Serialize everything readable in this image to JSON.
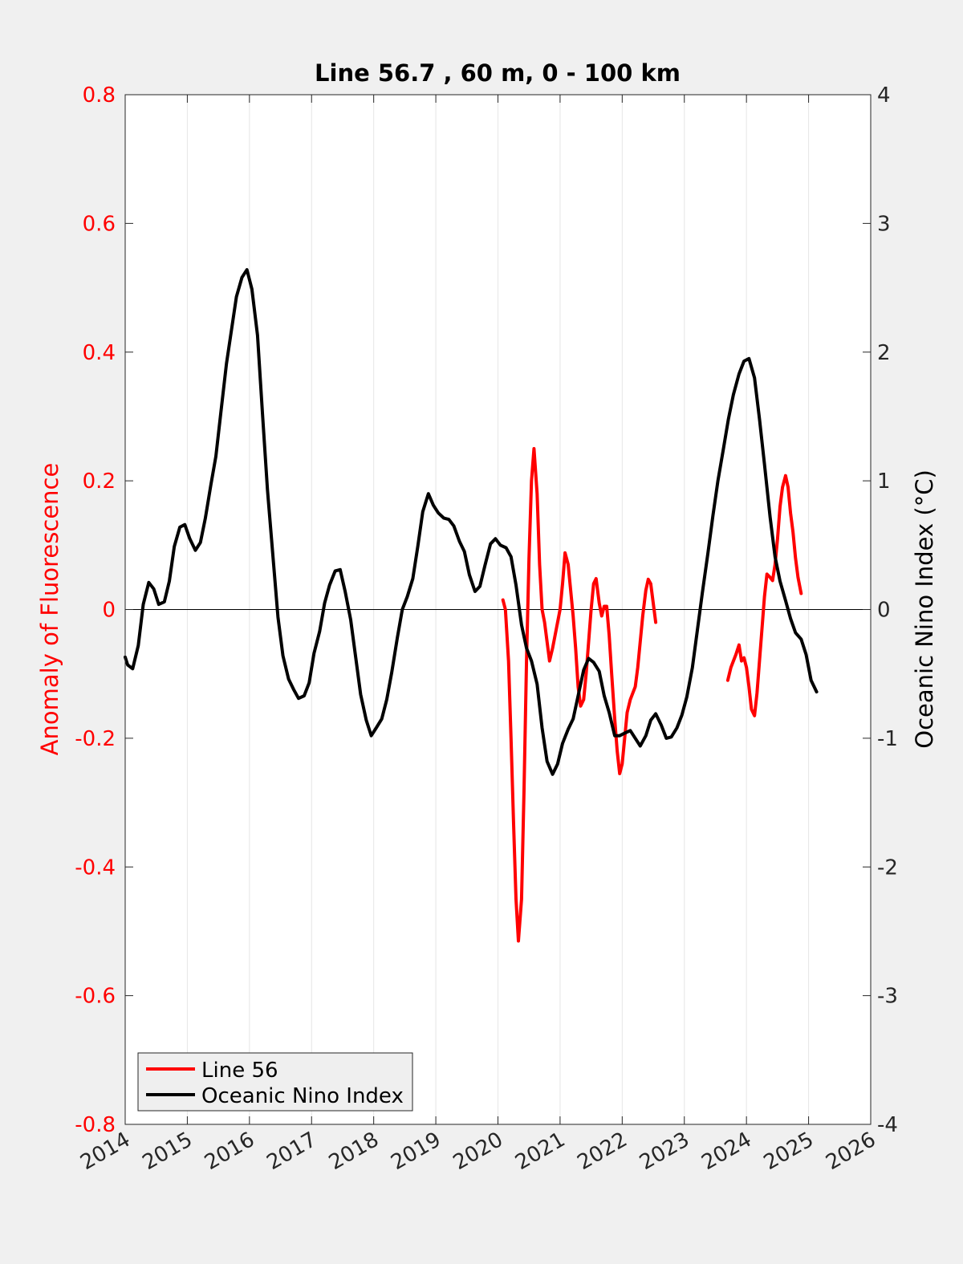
{
  "chart_data": {
    "type": "line",
    "title": "Line 56.7 , 60 m, 0 - 100 km",
    "xlabel": "",
    "xlim": [
      2014,
      2026
    ],
    "xticks": [
      "2014",
      "2015",
      "2016",
      "2017",
      "2018",
      "2019",
      "2020",
      "2021",
      "2022",
      "2023",
      "2024",
      "2025",
      "2026"
    ],
    "ylabel_left": "Anomaly of Fluorescence",
    "ylim_left": [
      -0.8,
      0.8
    ],
    "yticks_left": [
      "-0.8",
      "-0.6",
      "-0.4",
      "-0.2",
      "0",
      "0.2",
      "0.4",
      "0.6",
      "0.8"
    ],
    "ylabel_right": "Oceanic Nino Index (°C)",
    "ylim_right": [
      -4,
      4
    ],
    "yticks_right": [
      "-4",
      "-3",
      "-2",
      "-1",
      "0",
      "1",
      "2",
      "3",
      "4"
    ],
    "grid": "vertical",
    "legend_position": "bottom-left",
    "colors": {
      "fluorescence": "#ff0000",
      "oni": "#000000",
      "axis_left": "#ff0000"
    },
    "series": [
      {
        "name": "Line 56",
        "axis": "left",
        "segments": [
          [
            [
              2020.08,
              0.015
            ],
            [
              2020.12,
              0.0
            ],
            [
              2020.17,
              -0.08
            ],
            [
              2020.21,
              -0.2
            ],
            [
              2020.25,
              -0.33
            ],
            [
              2020.29,
              -0.45
            ],
            [
              2020.33,
              -0.515
            ],
            [
              2020.38,
              -0.45
            ],
            [
              2020.42,
              -0.28
            ],
            [
              2020.46,
              -0.08
            ],
            [
              2020.5,
              0.08
            ],
            [
              2020.54,
              0.2
            ],
            [
              2020.58,
              0.25
            ],
            [
              2020.63,
              0.18
            ],
            [
              2020.67,
              0.07
            ],
            [
              2020.71,
              0.0
            ],
            [
              2020.75,
              -0.02
            ],
            [
              2020.79,
              -0.05
            ],
            [
              2020.83,
              -0.08
            ],
            [
              2020.88,
              -0.06
            ],
            [
              2020.92,
              -0.04
            ],
            [
              2020.96,
              -0.02
            ],
            [
              2021.0,
              0.0
            ],
            [
              2021.04,
              0.04
            ],
            [
              2021.08,
              0.088
            ],
            [
              2021.13,
              0.07
            ],
            [
              2021.17,
              0.03
            ],
            [
              2021.21,
              -0.01
            ],
            [
              2021.25,
              -0.06
            ],
            [
              2021.29,
              -0.12
            ],
            [
              2021.33,
              -0.15
            ],
            [
              2021.38,
              -0.14
            ],
            [
              2021.42,
              -0.1
            ],
            [
              2021.46,
              -0.05
            ],
            [
              2021.5,
              0.0
            ],
            [
              2021.54,
              0.04
            ],
            [
              2021.58,
              0.048
            ],
            [
              2021.63,
              0.01
            ],
            [
              2021.67,
              -0.01
            ],
            [
              2021.71,
              0.005
            ],
            [
              2021.75,
              0.005
            ],
            [
              2021.79,
              -0.04
            ],
            [
              2021.83,
              -0.1
            ],
            [
              2021.88,
              -0.17
            ],
            [
              2021.92,
              -0.22
            ],
            [
              2021.96,
              -0.255
            ],
            [
              2022.0,
              -0.24
            ],
            [
              2022.04,
              -0.2
            ],
            [
              2022.08,
              -0.16
            ],
            [
              2022.13,
              -0.14
            ],
            [
              2022.17,
              -0.13
            ],
            [
              2022.21,
              -0.12
            ],
            [
              2022.25,
              -0.09
            ],
            [
              2022.29,
              -0.05
            ],
            [
              2022.33,
              -0.01
            ],
            [
              2022.38,
              0.03
            ],
            [
              2022.42,
              0.047
            ],
            [
              2022.46,
              0.04
            ],
            [
              2022.5,
              0.01
            ],
            [
              2022.54,
              -0.02
            ]
          ],
          [
            [
              2023.7,
              -0.11
            ],
            [
              2023.75,
              -0.09
            ],
            [
              2023.79,
              -0.08
            ],
            [
              2023.83,
              -0.07
            ],
            [
              2023.88,
              -0.055
            ],
            [
              2023.92,
              -0.08
            ],
            [
              2023.96,
              -0.075
            ],
            [
              2024.0,
              -0.09
            ],
            [
              2024.04,
              -0.12
            ],
            [
              2024.08,
              -0.155
            ],
            [
              2024.13,
              -0.165
            ],
            [
              2024.17,
              -0.13
            ],
            [
              2024.21,
              -0.08
            ],
            [
              2024.25,
              -0.03
            ],
            [
              2024.29,
              0.02
            ],
            [
              2024.33,
              0.055
            ],
            [
              2024.38,
              0.05
            ],
            [
              2024.42,
              0.045
            ],
            [
              2024.46,
              0.07
            ],
            [
              2024.5,
              0.11
            ],
            [
              2024.54,
              0.16
            ],
            [
              2024.58,
              0.19
            ],
            [
              2024.63,
              0.208
            ],
            [
              2024.67,
              0.19
            ],
            [
              2024.71,
              0.15
            ],
            [
              2024.75,
              0.12
            ],
            [
              2024.79,
              0.08
            ],
            [
              2024.83,
              0.05
            ],
            [
              2024.88,
              0.025
            ]
          ]
        ]
      },
      {
        "name": "Oceanic Nino Index",
        "axis": "right",
        "segments": [
          [
            [
              2014.0,
              -0.37
            ],
            [
              2014.04,
              -0.43
            ],
            [
              2014.12,
              -0.46
            ],
            [
              2014.21,
              -0.28
            ],
            [
              2014.29,
              0.04
            ],
            [
              2014.38,
              0.21
            ],
            [
              2014.46,
              0.16
            ],
            [
              2014.54,
              0.04
            ],
            [
              2014.63,
              0.06
            ],
            [
              2014.71,
              0.22
            ],
            [
              2014.79,
              0.49
            ],
            [
              2014.88,
              0.64
            ],
            [
              2014.96,
              0.66
            ],
            [
              2015.04,
              0.55
            ],
            [
              2015.13,
              0.46
            ],
            [
              2015.21,
              0.52
            ],
            [
              2015.29,
              0.71
            ],
            [
              2015.38,
              0.97
            ],
            [
              2015.46,
              1.19
            ],
            [
              2015.54,
              1.53
            ],
            [
              2015.63,
              1.91
            ],
            [
              2015.71,
              2.17
            ],
            [
              2015.79,
              2.43
            ],
            [
              2015.88,
              2.58
            ],
            [
              2015.96,
              2.64
            ],
            [
              2016.04,
              2.49
            ],
            [
              2016.13,
              2.13
            ],
            [
              2016.21,
              1.52
            ],
            [
              2016.29,
              0.93
            ],
            [
              2016.38,
              0.4
            ],
            [
              2016.46,
              -0.06
            ],
            [
              2016.54,
              -0.36
            ],
            [
              2016.63,
              -0.54
            ],
            [
              2016.71,
              -0.62
            ],
            [
              2016.79,
              -0.69
            ],
            [
              2016.88,
              -0.67
            ],
            [
              2016.96,
              -0.57
            ],
            [
              2017.04,
              -0.34
            ],
            [
              2017.13,
              -0.17
            ],
            [
              2017.21,
              0.05
            ],
            [
              2017.29,
              0.19
            ],
            [
              2017.38,
              0.3
            ],
            [
              2017.46,
              0.31
            ],
            [
              2017.54,
              0.14
            ],
            [
              2017.63,
              -0.08
            ],
            [
              2017.71,
              -0.37
            ],
            [
              2017.79,
              -0.66
            ],
            [
              2017.88,
              -0.86
            ],
            [
              2017.96,
              -0.98
            ],
            [
              2018.04,
              -0.92
            ],
            [
              2018.13,
              -0.85
            ],
            [
              2018.21,
              -0.7
            ],
            [
              2018.29,
              -0.49
            ],
            [
              2018.38,
              -0.22
            ],
            [
              2018.46,
              0.0
            ],
            [
              2018.54,
              0.1
            ],
            [
              2018.63,
              0.24
            ],
            [
              2018.71,
              0.49
            ],
            [
              2018.79,
              0.76
            ],
            [
              2018.88,
              0.9
            ],
            [
              2018.96,
              0.81
            ],
            [
              2019.04,
              0.75
            ],
            [
              2019.13,
              0.71
            ],
            [
              2019.21,
              0.7
            ],
            [
              2019.29,
              0.65
            ],
            [
              2019.38,
              0.53
            ],
            [
              2019.46,
              0.45
            ],
            [
              2019.54,
              0.27
            ],
            [
              2019.63,
              0.14
            ],
            [
              2019.71,
              0.18
            ],
            [
              2019.79,
              0.34
            ],
            [
              2019.88,
              0.51
            ],
            [
              2019.96,
              0.55
            ],
            [
              2020.04,
              0.5
            ],
            [
              2020.13,
              0.48
            ],
            [
              2020.21,
              0.41
            ],
            [
              2020.29,
              0.19
            ],
            [
              2020.38,
              -0.12
            ],
            [
              2020.46,
              -0.3
            ],
            [
              2020.54,
              -0.4
            ],
            [
              2020.63,
              -0.58
            ],
            [
              2020.71,
              -0.92
            ],
            [
              2020.79,
              -1.18
            ],
            [
              2020.88,
              -1.28
            ],
            [
              2020.96,
              -1.2
            ],
            [
              2021.04,
              -1.04
            ],
            [
              2021.13,
              -0.93
            ],
            [
              2021.21,
              -0.85
            ],
            [
              2021.29,
              -0.67
            ],
            [
              2021.38,
              -0.47
            ],
            [
              2021.46,
              -0.38
            ],
            [
              2021.54,
              -0.41
            ],
            [
              2021.63,
              -0.48
            ],
            [
              2021.71,
              -0.67
            ],
            [
              2021.79,
              -0.8
            ],
            [
              2021.88,
              -0.98
            ],
            [
              2021.96,
              -0.98
            ],
            [
              2022.04,
              -0.96
            ],
            [
              2022.13,
              -0.94
            ],
            [
              2022.21,
              -1.0
            ],
            [
              2022.29,
              -1.06
            ],
            [
              2022.38,
              -0.98
            ],
            [
              2022.46,
              -0.86
            ],
            [
              2022.54,
              -0.81
            ],
            [
              2022.63,
              -0.9
            ],
            [
              2022.71,
              -1.0
            ],
            [
              2022.79,
              -0.99
            ],
            [
              2022.88,
              -0.92
            ],
            [
              2022.96,
              -0.82
            ],
            [
              2023.04,
              -0.68
            ],
            [
              2023.13,
              -0.45
            ],
            [
              2023.21,
              -0.16
            ],
            [
              2023.29,
              0.13
            ],
            [
              2023.38,
              0.44
            ],
            [
              2023.46,
              0.73
            ],
            [
              2023.54,
              1.0
            ],
            [
              2023.63,
              1.25
            ],
            [
              2023.71,
              1.48
            ],
            [
              2023.79,
              1.67
            ],
            [
              2023.88,
              1.83
            ],
            [
              2023.96,
              1.93
            ],
            [
              2024.04,
              1.95
            ],
            [
              2024.13,
              1.8
            ],
            [
              2024.21,
              1.48
            ],
            [
              2024.29,
              1.13
            ],
            [
              2024.38,
              0.72
            ],
            [
              2024.46,
              0.41
            ],
            [
              2024.54,
              0.22
            ],
            [
              2024.63,
              0.07
            ],
            [
              2024.71,
              -0.07
            ],
            [
              2024.79,
              -0.18
            ],
            [
              2024.88,
              -0.23
            ],
            [
              2024.96,
              -0.35
            ],
            [
              2025.04,
              -0.55
            ],
            [
              2025.13,
              -0.64
            ]
          ]
        ]
      }
    ]
  }
}
